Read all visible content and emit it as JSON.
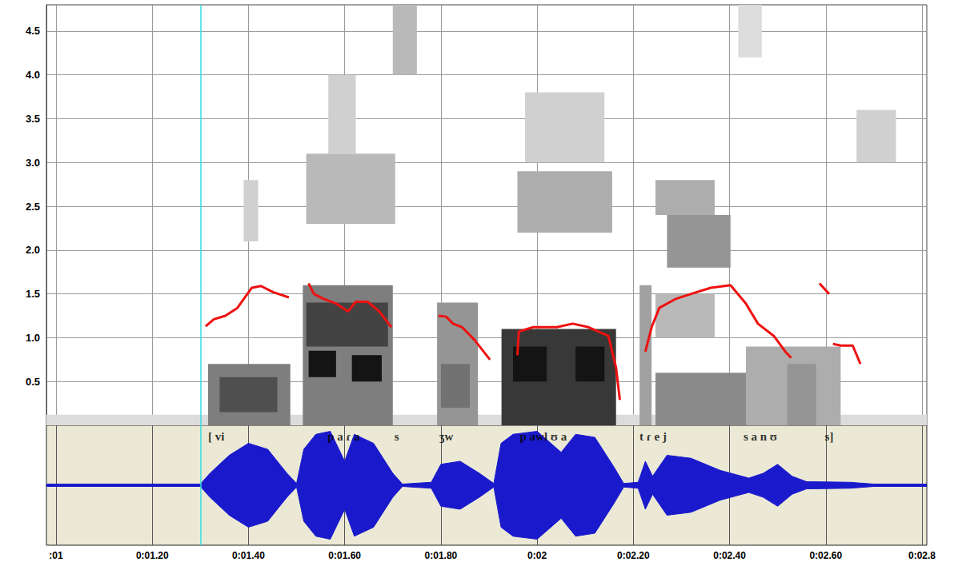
{
  "chart_data": {
    "type": "spectrogram",
    "grid": true,
    "xlim": [
      0.98,
      2.81
    ],
    "xticks": [
      {
        "value": 1.0,
        "label": ":01"
      },
      {
        "value": 1.2,
        "label": "0:01.20"
      },
      {
        "value": 1.4,
        "label": "0:01.40"
      },
      {
        "value": 1.6,
        "label": "0:01.60"
      },
      {
        "value": 1.8,
        "label": "0:01.80"
      },
      {
        "value": 2.0,
        "label": "0:02"
      },
      {
        "value": 2.2,
        "label": "0:02.20"
      },
      {
        "value": 2.4,
        "label": "0:02.40"
      },
      {
        "value": 2.6,
        "label": "0:02.60"
      },
      {
        "value": 2.8,
        "label": "0:02.8"
      }
    ],
    "ylim": [
      0,
      4.8
    ],
    "yticks": [
      0.5,
      {
        "value": 1,
        "label": "1.0"
      },
      1.5,
      {
        "value": 2,
        "label": "2.0"
      },
      2.5,
      {
        "value": 3,
        "label": "3.0"
      },
      3.5,
      {
        "value": 4,
        "label": "4.0"
      },
      4.5
    ],
    "y2lim": [
      -1,
      1
    ],
    "cursor": 1.3,
    "spectrogram": [
      [
        0.98,
        2.81,
        0,
        0.12,
        0.15
      ],
      [
        1.316,
        1.487,
        0,
        0.7,
        0.55
      ],
      [
        1.34,
        1.46,
        0.15,
        0.55,
        0.75
      ],
      [
        1.39,
        1.42,
        2.1,
        2.8,
        0.2
      ],
      [
        1.513,
        1.7,
        0,
        1.6,
        0.55
      ],
      [
        1.52,
        1.69,
        0.9,
        1.4,
        0.8
      ],
      [
        1.525,
        1.582,
        0.55,
        0.85,
        1.0
      ],
      [
        1.615,
        1.677,
        0.5,
        0.8,
        1.0
      ],
      [
        1.52,
        1.705,
        2.3,
        3.1,
        0.3
      ],
      [
        1.566,
        1.623,
        3.1,
        4.0,
        0.2
      ],
      [
        1.7,
        1.75,
        4.0,
        4.8,
        0.3
      ],
      [
        1.792,
        1.877,
        0,
        1.4,
        0.45
      ],
      [
        1.8,
        1.86,
        0.2,
        0.7,
        0.6
      ],
      [
        1.926,
        2.164,
        0,
        1.1,
        0.85
      ],
      [
        1.95,
        2.02,
        0.5,
        0.9,
        1.0
      ],
      [
        2.08,
        2.14,
        0.5,
        0.9,
        1.0
      ],
      [
        1.959,
        2.156,
        2.2,
        2.9,
        0.35
      ],
      [
        1.975,
        2.14,
        3.0,
        3.8,
        0.2
      ],
      [
        2.213,
        2.238,
        0,
        1.6,
        0.4
      ],
      [
        2.246,
        2.434,
        0,
        0.6,
        0.5
      ],
      [
        2.246,
        2.369,
        1.0,
        1.5,
        0.3
      ],
      [
        2.27,
        2.402,
        1.8,
        2.4,
        0.45
      ],
      [
        2.246,
        2.369,
        2.4,
        2.8,
        0.35
      ],
      [
        2.434,
        2.631,
        0,
        0.9,
        0.35
      ],
      [
        2.52,
        2.58,
        0,
        0.7,
        0.45
      ],
      [
        2.664,
        2.746,
        3.0,
        3.6,
        0.2
      ],
      [
        2.418,
        2.467,
        4.2,
        4.8,
        0.15
      ]
    ],
    "series": [
      {
        "type": "line",
        "color": "#ee1111",
        "x": [
          1.311,
          1.328,
          1.352,
          1.377,
          1.407,
          1.426,
          1.451,
          1.484,
          1.5,
          1.525,
          1.536,
          1.557,
          1.582,
          1.607,
          1.623,
          1.648,
          1.672,
          1.697,
          1.75,
          1.795,
          1.811,
          1.825,
          1.844,
          1.869,
          1.902,
          1.93,
          1.959,
          1.962,
          1.992,
          2.041,
          2.074,
          2.107,
          2.148,
          2.164,
          2.172,
          2.2,
          2.225,
          2.238,
          2.254,
          2.287,
          2.32,
          2.361,
          2.402,
          2.434,
          2.459,
          2.492,
          2.516,
          2.528,
          2.56,
          2.587,
          2.607,
          2.611,
          2.615,
          2.631,
          2.656,
          2.672
        ],
        "values": [
          1.13,
          1.21,
          1.25,
          1.34,
          1.57,
          1.59,
          1.52,
          1.46,
          null,
          1.62,
          1.5,
          1.44,
          1.39,
          1.3,
          1.41,
          1.41,
          1.3,
          1.12,
          null,
          1.25,
          1.24,
          1.16,
          1.12,
          0.98,
          0.75,
          null,
          0.8,
          1.07,
          1.12,
          1.12,
          1.16,
          1.12,
          1.02,
          0.66,
          0.29,
          null,
          0.84,
          1.12,
          1.34,
          1.44,
          1.5,
          1.57,
          1.6,
          1.39,
          1.16,
          1.02,
          0.84,
          0.77,
          null,
          1.62,
          1.5,
          null,
          0.93,
          0.91,
          0.91,
          0.7
        ]
      },
      {
        "type": "waveform",
        "axis": "y2",
        "color": "#1a1acc",
        "x": [
          0.98,
          1.3,
          1.32,
          1.36,
          1.4,
          1.44,
          1.48,
          1.5,
          1.515,
          1.54,
          1.57,
          1.6,
          1.62,
          1.66,
          1.7,
          1.72,
          1.78,
          1.8,
          1.84,
          1.88,
          1.91,
          1.925,
          1.95,
          2.0,
          2.05,
          2.08,
          2.12,
          2.16,
          2.18,
          2.21,
          2.225,
          2.24,
          2.27,
          2.32,
          2.38,
          2.44,
          2.47,
          2.5,
          2.53,
          2.56,
          2.65,
          2.7,
          2.81
        ],
        "values": [
          0.02,
          0.02,
          0.2,
          0.5,
          0.7,
          0.6,
          0.2,
          0.03,
          0.6,
          0.85,
          0.9,
          0.4,
          0.85,
          0.7,
          0.2,
          0.02,
          0.05,
          0.35,
          0.4,
          0.2,
          0.03,
          0.7,
          0.85,
          0.9,
          0.55,
          0.85,
          0.8,
          0.3,
          0.03,
          0.05,
          0.4,
          0.15,
          0.5,
          0.45,
          0.25,
          0.12,
          0.2,
          0.35,
          0.15,
          0.06,
          0.05,
          0.02,
          0.02
        ]
      }
    ],
    "annotations": [
      {
        "x": 1.333,
        "text": "[ vi"
      },
      {
        "x": 1.598,
        "text": "p a ɾ a"
      },
      {
        "x": 1.708,
        "text": "s"
      },
      {
        "x": 1.811,
        "text": "ʒw"
      },
      {
        "x": 2.013,
        "text": "p awl ʊ a"
      },
      {
        "x": 2.241,
        "text": "t ɾ e j"
      },
      {
        "x": 2.464,
        "text": "s a n ʊ"
      },
      {
        "x": 2.607,
        "text": "s]"
      }
    ]
  }
}
